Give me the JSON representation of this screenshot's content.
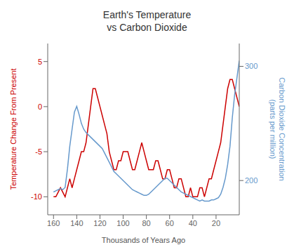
{
  "chart_data": {
    "type": "line",
    "title": "Earth's Temperature\nvs Carbon Dioxide",
    "xlabel": "Thousands of Years Ago",
    "ylabel": "Temperature Change From Present",
    "y2label": "Carbon Dioxide Concentration\n(parts per million)",
    "x": [
      160,
      158,
      156,
      154,
      152,
      150,
      148,
      146,
      144,
      142,
      140,
      138,
      136,
      134,
      132,
      130,
      128,
      126,
      124,
      122,
      120,
      118,
      116,
      114,
      112,
      110,
      108,
      106,
      104,
      102,
      100,
      98,
      96,
      94,
      92,
      90,
      88,
      86,
      84,
      82,
      80,
      78,
      76,
      74,
      72,
      70,
      68,
      66,
      64,
      62,
      60,
      58,
      56,
      54,
      52,
      50,
      48,
      46,
      44,
      42,
      40,
      38,
      36,
      34,
      32,
      30,
      28,
      26,
      24,
      22,
      20,
      18,
      16,
      14,
      12,
      10,
      8,
      6,
      4,
      2,
      0
    ],
    "xlim": [
      0,
      165
    ],
    "xticks": [
      20,
      40,
      60,
      80,
      100,
      120,
      140,
      160
    ],
    "ylim": [
      -12,
      7
    ],
    "yticks": [
      -10,
      -5,
      0,
      5
    ],
    "y2lim": [
      170,
      320
    ],
    "y2ticks": [
      200,
      300
    ],
    "series": [
      {
        "color": "#cc0000",
        "values": [
          -10,
          -10,
          -9.5,
          -9,
          -9.5,
          -10,
          -9,
          -8,
          -9,
          -8,
          -7,
          -6,
          -5,
          -5,
          -4,
          -2,
          0,
          2,
          2,
          1,
          0,
          -1,
          -2,
          -3,
          -5,
          -6,
          -7,
          -7,
          -6,
          -6,
          -5,
          -5,
          -5,
          -6,
          -7,
          -7,
          -6,
          -5,
          -4,
          -5,
          -6,
          -7,
          -7,
          -7,
          -6,
          -6,
          -7,
          -8,
          -8,
          -7,
          -7,
          -8,
          -9,
          -9,
          -8,
          -8,
          -9,
          -10,
          -10,
          -9,
          -10,
          -10,
          -10,
          -9,
          -9,
          -10,
          -9,
          -8,
          -8,
          -7,
          -6,
          -5,
          -4,
          -2,
          0,
          2,
          3,
          3,
          2,
          1,
          0
        ]
      },
      {
        "color": "#6699cc",
        "axis": "y2",
        "values": [
          190,
          191,
          192,
          193,
          192,
          194,
          210,
          230,
          245,
          260,
          265,
          258,
          250,
          245,
          242,
          240,
          238,
          236,
          234,
          232,
          230,
          228,
          224,
          220,
          216,
          212,
          208,
          206,
          204,
          202,
          200,
          198,
          196,
          194,
          192,
          191,
          190,
          189,
          188,
          187,
          187,
          188,
          190,
          192,
          194,
          196,
          198,
          200,
          202,
          202,
          200,
          198,
          196,
          194,
          192,
          190,
          189,
          188,
          187,
          186,
          185,
          184,
          183,
          182,
          183,
          182,
          182,
          182,
          183,
          183,
          184,
          185,
          188,
          194,
          202,
          214,
          230,
          255,
          275,
          290,
          305
        ]
      }
    ]
  }
}
